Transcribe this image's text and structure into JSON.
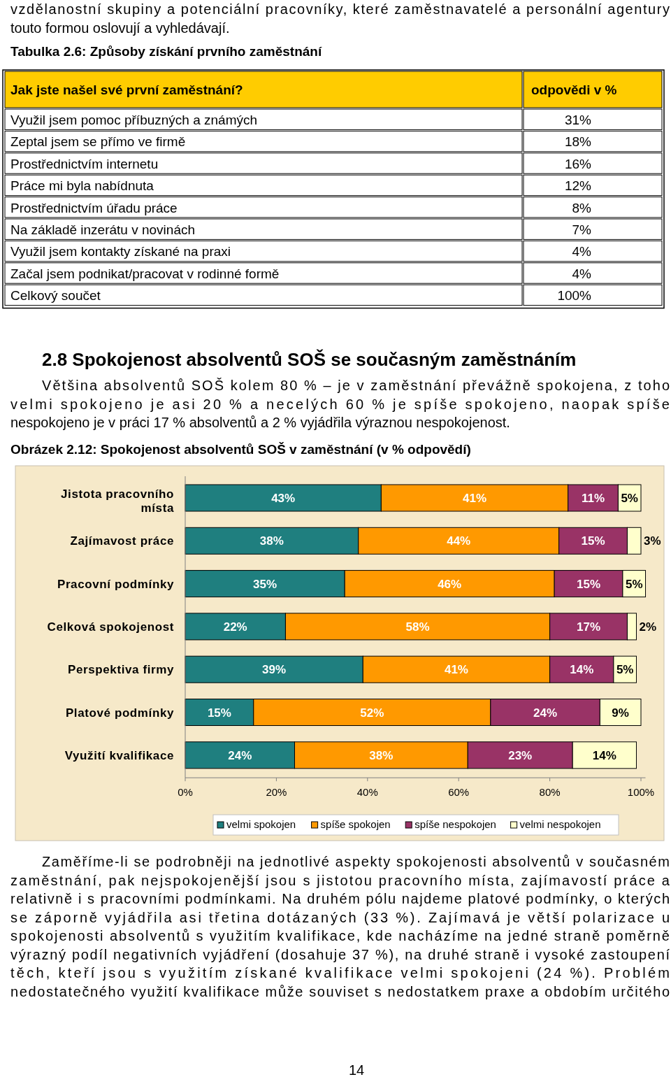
{
  "chart_data": [
    {
      "type": "other",
      "title": "Tabulka 2.6: Způsoby získání prvního zaměstnání",
      "annotations": [
        "vzdělanostní skupiny a potenciální pracovníky, které zaměstnavatelé a personální agentury",
        "touto formou oslovují a vyhledávají.",
        "Jak jste našel své první zaměstnání?",
        "odpovědi v %",
        "Využil jsem pomoc příbuzných a známých",
        "31%",
        "Zeptal jsem se přímo ve firmě",
        "18%",
        "Prostřednictvím internetu",
        "16%",
        "Práce mi byla nabídnuta",
        "12%",
        "Prostřednictvím úřadu práce",
        "8%",
        "Na základě inzerátu v novinách",
        "7%",
        "Využil jsem kontakty získané na praxi",
        "4%",
        "Začal jsem podnikat/pracovat v rodinné formě",
        "4%",
        "Celkový součet",
        "100%"
      ]
    },
    {
      "type": "bar",
      "orientation": "horizontal",
      "stacked": true,
      "title": "Obrázek 2.12: Spokojenost absolventů SOŠ v zaměstnání (v % odpovědí)",
      "categories": [
        "Jistota pracovního místa",
        "Zajímavost práce",
        "Pracovní podmínky",
        "Celková spokojenost",
        "Perspektiva firmy",
        "Platové podmínky",
        "Využití kvalifikace"
      ],
      "series": [
        {
          "name": "velmi spokojen",
          "color": "#1f7f7f",
          "values": [
            43,
            38,
            35,
            22,
            39,
            15,
            24
          ],
          "value_labels": [
            "43%",
            "38%",
            "35%",
            "22%",
            "39%",
            "15%",
            "24%"
          ]
        },
        {
          "name": "spíše spokojen",
          "color": "#ff9900",
          "values": [
            41,
            44,
            46,
            58,
            41,
            52,
            38
          ],
          "value_labels": [
            "41%",
            "44%",
            "46%",
            "58%",
            "41%",
            "52%",
            "38%"
          ]
        },
        {
          "name": "spíše nespokojen",
          "color": "#993366",
          "values": [
            11,
            15,
            15,
            17,
            14,
            24,
            23
          ],
          "value_labels": [
            "11%",
            "15%",
            "15%",
            "17%",
            "14%",
            "24%",
            "23%"
          ]
        },
        {
          "name": "velmi nespokojen",
          "color": "#ffffcc",
          "values": [
            5,
            3,
            5,
            2,
            5,
            9,
            14
          ],
          "value_labels": [
            "5%",
            "3%",
            "5%",
            "2%",
            "5%",
            "9%",
            "14%"
          ]
        }
      ],
      "xlim": [
        0,
        101
      ],
      "xticks": [
        {
          "value": 0,
          "label": "0%"
        },
        {
          "value": 20,
          "label": "20%"
        },
        {
          "value": 40,
          "label": "40%"
        },
        {
          "value": 60,
          "label": "60%"
        },
        {
          "value": 80,
          "label": "80%"
        },
        {
          "value": 100,
          "label": "100%"
        }
      ],
      "legend": "bottom",
      "annotations": [
        "2.8 Spokojenost absolventů SOŠ se současným zaměstnáním",
        "Většina absolventů SOŠ kolem 80 % – je v zaměstnání převážně spokojena, z toho",
        "velmi spokojeno je asi 20 % a necelých 60 % je spíše spokojeno, naopak spíše",
        "nespokojeno je v práci 17 % absolventů a 2 % vyjádřila výraznou nespokojenost.",
        "Zaměříme-li se podrobněji na jednotlivé aspekty spokojenosti absolventů v současném",
        "zaměstnání, pak nejspokojenější jsou s jistotou pracovního místa, zajímavostí práce a",
        "relativně i s pracovními podmínkami. Na druhém pólu najdeme platové podmínky, o kterých",
        "se záporně vyjádřila asi třetina dotázaných (33 %). Zajímavá je větší polarizace u",
        "spokojenosti absolventů s využitím kvalifikace, kde nacházíme na jedné straně poměrně",
        "výrazný podíl negativních vyjádření (dosahuje 37 %), na druhé straně i vysoké zastoupení",
        "těch, kteří jsou s využitím získané kvalifikace velmi spokojeni (24 %). Problém",
        "nedostatečného využití kvalifikace může souviset s nedostatkem praxe a obdobím určitého",
        "14"
      ]
    }
  ]
}
